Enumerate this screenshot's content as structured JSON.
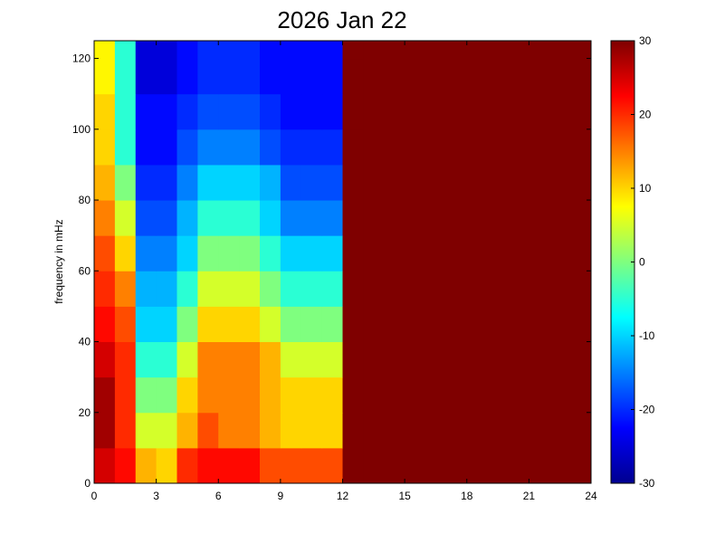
{
  "chart_data": {
    "type": "heatmap",
    "title": "2026 Jan 22",
    "xlabel": "",
    "ylabel": "frequency in mHz",
    "xlim": [
      0,
      24
    ],
    "ylim": [
      0,
      125
    ],
    "x_ticks": [
      0,
      3,
      6,
      9,
      12,
      15,
      18,
      21,
      24
    ],
    "y_ticks": [
      0,
      20,
      40,
      60,
      80,
      100,
      120
    ],
    "colorbar": {
      "colormap": "jet",
      "min": -30,
      "max": 30,
      "ticks": [
        -30,
        -20,
        -10,
        0,
        10,
        20,
        30
      ]
    },
    "x_hour_centers": [
      0.5,
      1.5,
      2.5,
      3.5,
      4.5,
      5.5,
      6.5,
      7.5,
      8.5,
      9.5,
      10.5,
      11.5,
      12.5
    ],
    "y_freq_centers": [
      5,
      15,
      25,
      35,
      45,
      55,
      65,
      75,
      85,
      95,
      105,
      115,
      125
    ],
    "z_approx": [
      [
        25,
        22,
        12,
        10,
        20,
        22,
        22,
        22,
        18,
        18,
        18,
        18,
        30
      ],
      [
        28,
        20,
        5,
        5,
        12,
        18,
        15,
        15,
        12,
        10,
        10,
        10,
        30
      ],
      [
        28,
        20,
        0,
        0,
        10,
        15,
        15,
        15,
        12,
        10,
        10,
        10,
        30
      ],
      [
        25,
        20,
        -5,
        -5,
        5,
        15,
        15,
        15,
        12,
        5,
        5,
        5,
        30
      ],
      [
        22,
        18,
        -10,
        -10,
        0,
        10,
        10,
        10,
        5,
        0,
        0,
        0,
        30
      ],
      [
        20,
        15,
        -12,
        -12,
        -5,
        5,
        5,
        5,
        0,
        -5,
        -5,
        -5,
        30
      ],
      [
        18,
        10,
        -15,
        -15,
        -10,
        0,
        0,
        0,
        -5,
        -10,
        -10,
        -10,
        30
      ],
      [
        15,
        5,
        -18,
        -18,
        -12,
        -5,
        -5,
        -5,
        -10,
        -15,
        -15,
        -15,
        30
      ],
      [
        12,
        0,
        -20,
        -20,
        -15,
        -10,
        -10,
        -10,
        -12,
        -18,
        -18,
        -18,
        30
      ],
      [
        10,
        -5,
        -22,
        -22,
        -18,
        -15,
        -15,
        -15,
        -18,
        -20,
        -20,
        -20,
        30
      ],
      [
        10,
        -5,
        -22,
        -22,
        -20,
        -18,
        -18,
        -18,
        -20,
        -22,
        -22,
        -22,
        30
      ],
      [
        8,
        -5,
        -25,
        -25,
        -22,
        -20,
        -20,
        -20,
        -22,
        -22,
        -22,
        -22,
        30
      ],
      [
        8,
        -5,
        -25,
        -25,
        -22,
        -20,
        -20,
        -20,
        -22,
        -22,
        -22,
        -22,
        30
      ]
    ]
  }
}
